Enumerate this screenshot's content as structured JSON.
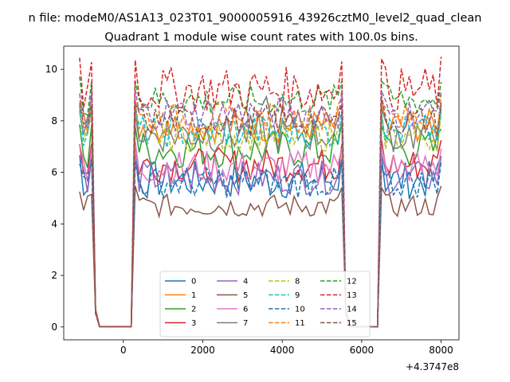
{
  "chart_data": {
    "type": "line",
    "suptitle": "n file: modeM0/AS1A13_023T01_9000005916_43926cztM0_level2_quad_clean",
    "title": "Quadrant 1 module wise count rates with 100.0s bins.",
    "xlabel": "",
    "ylabel": "",
    "x_offset_label": "+4.3747e8",
    "x_offset": 437470000,
    "xlim": [
      -1500,
      8450
    ],
    "ylim": [
      -0.5,
      10.9
    ],
    "xticks": [
      0,
      2000,
      4000,
      6000,
      8000
    ],
    "xtick_labels": [
      "0",
      "2000",
      "4000",
      "6000",
      "8000"
    ],
    "yticks": [
      0,
      2,
      4,
      6,
      8,
      10
    ],
    "ytick_labels": [
      "0",
      "2",
      "4",
      "6",
      "8",
      "10"
    ],
    "grid": false,
    "legend_position": "lower center",
    "legend_columns": 4,
    "bin_width": 100,
    "time_segments": [
      {
        "start": -1100,
        "end": -800
      },
      {
        "start": 300,
        "end": 5500
      },
      {
        "start": 6500,
        "end": 8000
      }
    ],
    "gap_floor": 0.0,
    "series": [
      {
        "name": "0",
        "color": "#1f77b4",
        "dash": "solid",
        "level": 5.7,
        "noise": 0.25
      },
      {
        "name": "1",
        "color": "#ff7f0e",
        "dash": "solid",
        "level": 7.8,
        "noise": 0.22
      },
      {
        "name": "2",
        "color": "#2ca02c",
        "dash": "solid",
        "level": 6.9,
        "noise": 0.25
      },
      {
        "name": "3",
        "color": "#d62728",
        "dash": "solid",
        "level": 6.3,
        "noise": 0.22
      },
      {
        "name": "4",
        "color": "#9467bd",
        "dash": "solid",
        "level": 5.8,
        "noise": 0.22
      },
      {
        "name": "5",
        "color": "#8c564b",
        "dash": "solid",
        "level": 4.7,
        "noise": 0.15
      },
      {
        "name": "6",
        "color": "#e377c2",
        "dash": "solid",
        "level": 6.2,
        "noise": 0.22
      },
      {
        "name": "7",
        "color": "#7f7f7f",
        "dash": "solid",
        "level": 7.5,
        "noise": 0.25
      },
      {
        "name": "8",
        "color": "#bcbd22",
        "dash": "dashed",
        "level": 7.4,
        "noise": 0.2
      },
      {
        "name": "9",
        "color": "#17becf",
        "dash": "dashed",
        "level": 7.6,
        "noise": 0.22
      },
      {
        "name": "10",
        "color": "#1f77b4",
        "dash": "dashed",
        "level": 5.6,
        "noise": 0.2
      },
      {
        "name": "11",
        "color": "#ff7f0e",
        "dash": "dashed",
        "level": 8.1,
        "noise": 0.2
      },
      {
        "name": "12",
        "color": "#2ca02c",
        "dash": "dashed",
        "level": 8.8,
        "noise": 0.2
      },
      {
        "name": "13",
        "color": "#d62728",
        "dash": "dashed",
        "level": 9.2,
        "noise": 0.3
      },
      {
        "name": "14",
        "color": "#9467bd",
        "dash": "dashed",
        "level": 8.3,
        "noise": 0.22
      },
      {
        "name": "15",
        "color": "#8c564b",
        "dash": "dashed",
        "level": 8.0,
        "noise": 0.2
      }
    ]
  }
}
